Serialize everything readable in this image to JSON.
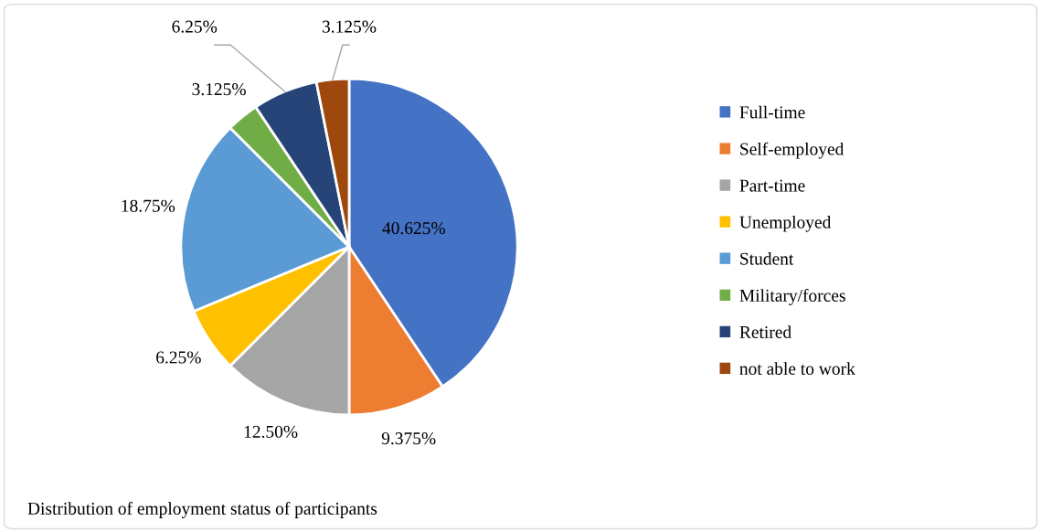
{
  "chart_data": {
    "type": "pie",
    "categories": [
      "Full-time",
      "Self-employed",
      "Part-time",
      "Unemployed",
      "Student",
      "Military/forces",
      "Retired",
      "not able to work"
    ],
    "values": [
      40.625,
      9.375,
      12.5,
      6.25,
      18.75,
      3.125,
      6.25,
      3.125
    ],
    "value_labels": [
      "40.625%",
      "9.375%",
      "12.50%",
      "6.25%",
      "18.75%",
      "3.125%",
      "6.25%",
      "3.125%"
    ],
    "colors": [
      "#4472c4",
      "#ed7d31",
      "#a5a5a5",
      "#ffc000",
      "#5b9bd5",
      "#70ad47",
      "#264478",
      "#9e480e"
    ],
    "legend": "right",
    "annotations": [
      "Distribution of employment status of participants"
    ]
  }
}
